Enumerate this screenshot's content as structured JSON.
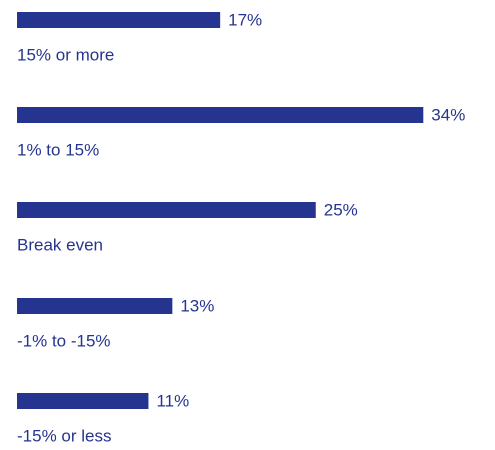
{
  "chart_data": {
    "type": "bar",
    "orientation": "horizontal",
    "categories": [
      "15% or more",
      "1% to 15%",
      "Break even",
      "-1% to -15%",
      "-15% or less"
    ],
    "values": [
      17,
      34,
      25,
      13,
      11
    ],
    "value_labels": [
      "17%",
      "34%",
      "25%",
      "13%",
      "11%"
    ],
    "color": "#25348f"
  }
}
